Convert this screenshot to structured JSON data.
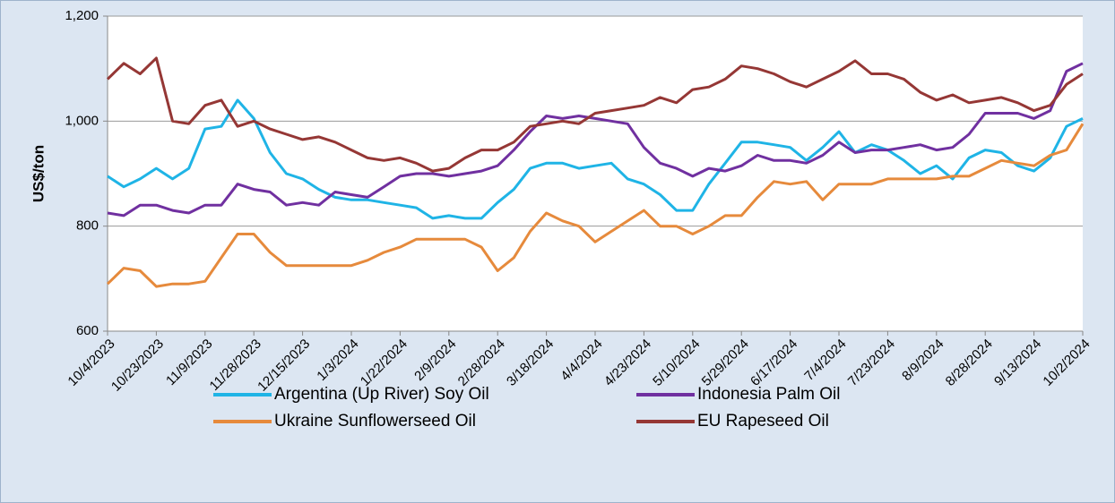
{
  "chart_data": {
    "type": "line",
    "y_axis_label": "US$/ton",
    "categories": [
      "10/4/2023",
      null,
      null,
      "10/23/2023",
      null,
      null,
      "11/9/2023",
      null,
      null,
      "11/28/2023",
      null,
      null,
      "12/15/2023",
      null,
      null,
      "1/3/2024",
      null,
      null,
      "1/22/2024",
      null,
      null,
      "2/9/2024",
      null,
      null,
      "2/28/2024",
      null,
      null,
      "3/18/2024",
      null,
      null,
      "4/4/2024",
      null,
      null,
      "4/23/2024",
      null,
      null,
      "5/10/2024",
      null,
      null,
      "5/29/2024",
      null,
      null,
      "6/17/2024",
      null,
      null,
      "7/4/2024",
      null,
      null,
      "7/23/2024",
      null,
      null,
      "8/9/2024",
      null,
      null,
      "8/28/2024",
      null,
      null,
      "9/13/2024",
      null,
      null,
      "10/2/2024"
    ],
    "series": [
      {
        "name": "Argentina (Up River) Soy Oil",
        "color": "#1fb4e6",
        "values": [
          895,
          875,
          890,
          910,
          890,
          910,
          985,
          990,
          1040,
          1005,
          940,
          900,
          890,
          870,
          855,
          850,
          850,
          845,
          840,
          835,
          815,
          820,
          815,
          815,
          845,
          870,
          910,
          920,
          920,
          910,
          915,
          920,
          890,
          880,
          860,
          830,
          830,
          880,
          920,
          960,
          960,
          955,
          950,
          925,
          950,
          980,
          940,
          955,
          945,
          925,
          900,
          915,
          890,
          930,
          945,
          940,
          915,
          905,
          930,
          990,
          1005
        ]
      },
      {
        "name": "Indonesia Palm Oil",
        "color": "#7030a0",
        "values": [
          825,
          820,
          840,
          840,
          830,
          825,
          840,
          840,
          880,
          870,
          865,
          840,
          845,
          840,
          865,
          860,
          855,
          875,
          895,
          900,
          900,
          895,
          900,
          905,
          915,
          945,
          980,
          1010,
          1005,
          1010,
          1005,
          1000,
          995,
          950,
          920,
          910,
          895,
          910,
          905,
          915,
          935,
          925,
          925,
          920,
          935,
          960,
          940,
          945,
          945,
          950,
          955,
          945,
          950,
          975,
          1015,
          1015,
          1015,
          1005,
          1020,
          1095,
          1110
        ]
      },
      {
        "name": "Ukraine Sunflowerseed Oil",
        "color": "#e68a3c",
        "values": [
          690,
          720,
          715,
          685,
          690,
          690,
          695,
          740,
          785,
          785,
          750,
          725,
          725,
          725,
          725,
          725,
          735,
          750,
          760,
          775,
          775,
          775,
          775,
          760,
          715,
          740,
          790,
          825,
          810,
          800,
          770,
          790,
          810,
          830,
          800,
          800,
          785,
          800,
          820,
          820,
          855,
          885,
          880,
          885,
          850,
          880,
          880,
          880,
          890,
          890,
          890,
          890,
          895,
          895,
          910,
          925,
          920,
          915,
          935,
          945,
          995
        ]
      },
      {
        "name": "EU Rapeseed Oil",
        "color": "#953735",
        "values": [
          1080,
          1110,
          1090,
          1120,
          1000,
          995,
          1030,
          1040,
          990,
          1000,
          985,
          975,
          965,
          970,
          960,
          945,
          930,
          925,
          930,
          920,
          905,
          910,
          930,
          945,
          945,
          960,
          990,
          995,
          1000,
          995,
          1015,
          1020,
          1025,
          1030,
          1045,
          1035,
          1060,
          1065,
          1080,
          1105,
          1100,
          1090,
          1075,
          1065,
          1080,
          1095,
          1115,
          1090,
          1090,
          1080,
          1055,
          1040,
          1050,
          1035,
          1040,
          1045,
          1035,
          1020,
          1030,
          1070,
          1090
        ]
      }
    ],
    "ylim": [
      600,
      1200
    ],
    "yticks": [
      600,
      800,
      {
        "value": 1000,
        "label": "1,000"
      },
      {
        "value": 1200,
        "label": "1,200"
      }
    ],
    "grid": true,
    "legend": "bottom"
  }
}
